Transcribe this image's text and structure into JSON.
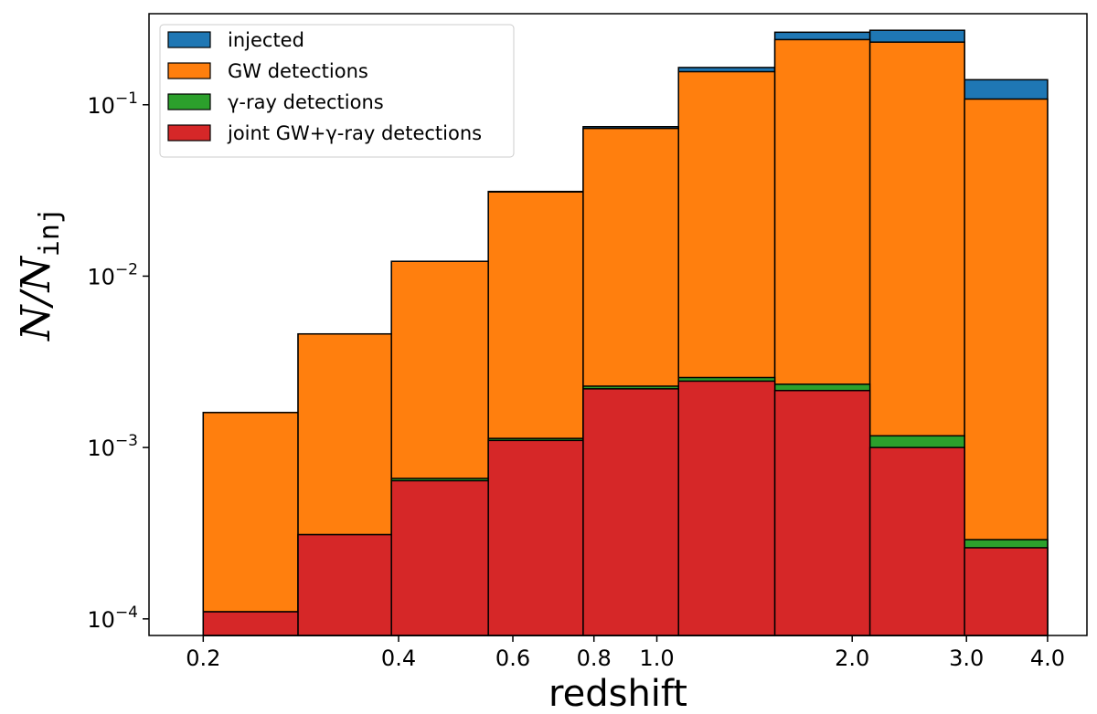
{
  "chart_data": {
    "type": "bar",
    "xlabel": "redshift",
    "ylabel": {
      "main": "N/N",
      "subscript": "inj"
    },
    "x_scale": "log",
    "y_scale": "log",
    "xlim": [
      0.165,
      4.6
    ],
    "ylim": [
      8e-05,
      0.34
    ],
    "x_ticks": [
      {
        "value": 0.2,
        "label": "0.2"
      },
      {
        "value": 0.4,
        "label": "0.4"
      },
      {
        "value": 0.6,
        "label": "0.6"
      },
      {
        "value": 0.8,
        "label": "0.8"
      },
      {
        "value": 1.0,
        "label": "1.0"
      },
      {
        "value": 2.0,
        "label": "2.0"
      },
      {
        "value": 3.0,
        "label": "3.0"
      },
      {
        "value": 4.0,
        "label": "4.0"
      }
    ],
    "y_ticks": [
      {
        "value": 0.0001,
        "base": "10",
        "exp": "−4"
      },
      {
        "value": 0.001,
        "base": "10",
        "exp": "−3"
      },
      {
        "value": 0.01,
        "base": "10",
        "exp": "−2"
      },
      {
        "value": 0.1,
        "base": "10",
        "exp": "−1"
      }
    ],
    "bin_edges": [
      0.2,
      0.28,
      0.39,
      0.55,
      0.77,
      1.08,
      1.52,
      2.13,
      2.98,
      4.0
    ],
    "series": [
      {
        "name": "injected",
        "color": "#1f77b4",
        "values": [
          0.0016,
          0.0046,
          0.0122,
          0.0312,
          0.0745,
          0.165,
          0.265,
          0.272,
          0.14
        ]
      },
      {
        "name": "GW detections",
        "color": "#ff7f0e",
        "values": [
          0.0016,
          0.0046,
          0.0122,
          0.031,
          0.0728,
          0.156,
          0.24,
          0.232,
          0.108
        ]
      },
      {
        "name": "γ-ray detections",
        "color": "#2ca02c",
        "values": [
          0.00011,
          0.00031,
          0.00066,
          0.00113,
          0.00228,
          0.00256,
          0.00234,
          0.00117,
          0.00029
        ]
      },
      {
        "name": "joint GW+γ-ray detections",
        "color": "#d62728",
        "values": [
          0.00011,
          0.00031,
          0.00064,
          0.0011,
          0.0022,
          0.00244,
          0.00215,
          0.001,
          0.00026
        ]
      }
    ],
    "legend": {
      "position": "top-left"
    },
    "grid": false
  }
}
